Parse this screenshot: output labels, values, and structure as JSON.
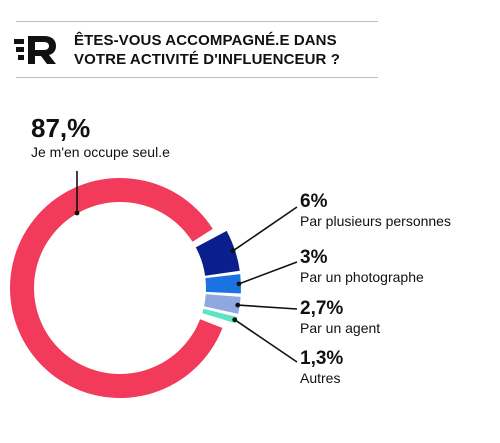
{
  "header": {
    "title_line1": "ÊTES-VOUS ACCOMPAGNÉ.E DANS",
    "title_line2": "VOTRE ACTIVITÉ D'INFLUENCEUR ?",
    "logo_letter": "R"
  },
  "colors": {
    "seul": "#f23a5a",
    "plusieurs": "#0b1f8c",
    "photographe": "#1a73e0",
    "agent": "#8fa8e0",
    "autres": "#5ee3c5",
    "line": "#111111"
  },
  "chart_data": {
    "type": "pie",
    "title": "ÊTES-VOUS ACCOMPAGNÉ.E DANS VOTRE ACTIVITÉ D'INFLUENCEUR ?",
    "series": [
      {
        "name": "Je m'en occupe seul.e",
        "value": 87,
        "value_label": "87,%"
      },
      {
        "name": "Par plusieurs personnes",
        "value": 6,
        "value_label": "6%"
      },
      {
        "name": "Par un photographe",
        "value": 3,
        "value_label": "3%"
      },
      {
        "name": "Par un agent",
        "value": 2.7,
        "value_label": "2,7%"
      },
      {
        "name": "Autres",
        "value": 1.3,
        "value_label": "1,3%"
      }
    ]
  }
}
